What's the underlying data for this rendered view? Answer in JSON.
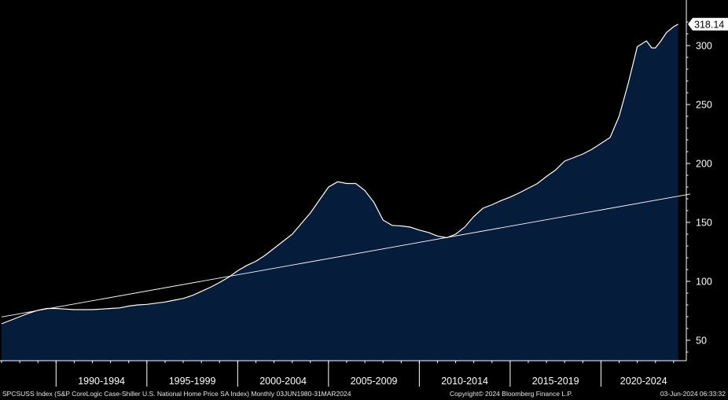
{
  "chart_data": {
    "type": "area",
    "title": "",
    "xlabel": "",
    "ylabel": "",
    "ylim": [
      30,
      330
    ],
    "y_ticks": [
      50,
      100,
      150,
      200,
      250,
      300
    ],
    "x_periods": [
      "1990-1994",
      "1995-1999",
      "2000-2004",
      "2005-2009",
      "2010-2014",
      "2015-2019",
      "2020-2024"
    ],
    "last_value": "318.14",
    "grid": false,
    "colors": {
      "area_fill": "#061c3b",
      "series_line": "#ffffff",
      "trend_line": "#ffffff",
      "background": "#000000",
      "last_value_badge": "#ffffff"
    },
    "series": [
      {
        "x": [
          1987.0,
          1987.5,
          1988.0,
          1988.5,
          1989.0,
          1989.5,
          1990.0,
          1990.5,
          1991.0,
          1991.5,
          1992.0,
          1992.5,
          1993.0,
          1993.5,
          1994.0,
          1994.5,
          1995.0,
          1995.5,
          1996.0,
          1996.5,
          1997.0,
          1997.5,
          1998.0,
          1998.5,
          1999.0,
          1999.5,
          2000.0,
          2000.5,
          2001.0,
          2001.5,
          2002.0,
          2002.5,
          2003.0,
          2003.5,
          2004.0,
          2004.5,
          2005.0,
          2005.5,
          2006.0,
          2006.5,
          2007.0,
          2007.5,
          2008.0,
          2008.5,
          2009.0,
          2009.5,
          2010.0,
          2010.5,
          2011.0,
          2011.5,
          2012.0,
          2012.5,
          2013.0,
          2013.5,
          2014.0,
          2014.5,
          2015.0,
          2015.5,
          2016.0,
          2016.5,
          2017.0,
          2017.5,
          2018.0,
          2018.5,
          2019.0,
          2019.5,
          2020.0,
          2020.5,
          2021.0,
          2021.5,
          2022.0,
          2022.5,
          2022.8,
          2023.0,
          2023.3,
          2023.6,
          2024.0,
          2024.25
        ],
        "values": [
          64,
          67,
          70,
          73,
          75.5,
          77,
          77,
          76.5,
          76,
          76,
          76,
          76.5,
          77,
          77.5,
          79,
          80,
          80.5,
          81.5,
          82.5,
          84,
          85.5,
          88,
          91.5,
          95,
          99,
          103.5,
          109,
          113.5,
          117,
          122,
          128,
          134,
          140,
          149,
          158,
          169,
          180,
          184.5,
          183,
          183,
          177,
          167,
          152,
          147.5,
          147,
          146,
          143.5,
          141.5,
          138.5,
          137,
          140,
          146,
          155,
          162,
          165,
          168.5,
          171.5,
          175,
          179,
          183,
          189,
          194.5,
          202,
          205,
          208,
          212,
          217,
          222,
          240,
          268,
          299,
          304,
          298,
          298,
          304,
          311,
          316,
          318.14
        ]
      },
      {
        "x": [
          1980.0,
          2024.25
        ],
        "values": [
          50.5,
          172.5
        ]
      }
    ]
  },
  "footer": {
    "left": "SPCSUSS Index (S&P CoreLogic Case-Shiller U.S. National Home Price SA Index)  Monthly 03JUN1980-31MAR2024",
    "mid": "Copyright© 2024 Bloomberg Finance L.P.",
    "right": "03-Jun-2024 06:33:32"
  }
}
